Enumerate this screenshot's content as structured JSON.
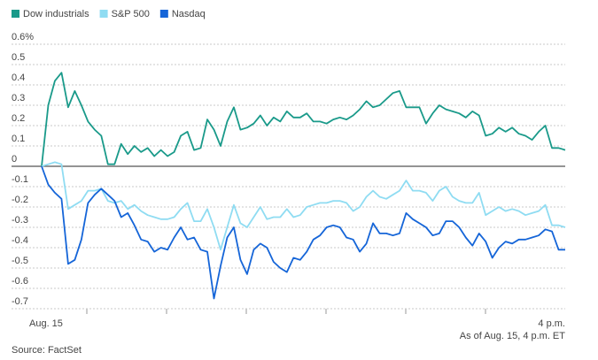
{
  "chart_data": {
    "type": "line",
    "categories": [
      "Aug. 15",
      null,
      null,
      null,
      null,
      null,
      null,
      null,
      null,
      null,
      null,
      null,
      null,
      null,
      null,
      null,
      null,
      null,
      null,
      null,
      null,
      null,
      null,
      null,
      null,
      null,
      null,
      null,
      null,
      null,
      null,
      null,
      null,
      null,
      null,
      null,
      null,
      null,
      null,
      null,
      null,
      null,
      null,
      null,
      null,
      null,
      null,
      null,
      null,
      null,
      null,
      null,
      null,
      null,
      null,
      null,
      null,
      null,
      null,
      null,
      null,
      null,
      null,
      null,
      null,
      null,
      null,
      null,
      null,
      null,
      null,
      null,
      null,
      null,
      null,
      null,
      null,
      null,
      null,
      "4 p.m."
    ],
    "series": [
      {
        "name": "Dow industrials",
        "color": "#1a9a8a",
        "values": [
          0,
          0.3,
          0.42,
          0.46,
          0.29,
          0.37,
          0.3,
          0.22,
          0.18,
          0.15,
          0.01,
          0.01,
          0.11,
          0.06,
          0.1,
          0.07,
          0.09,
          0.05,
          0.08,
          0.05,
          0.07,
          0.15,
          0.17,
          0.08,
          0.09,
          0.23,
          0.18,
          0.1,
          0.22,
          0.29,
          0.18,
          0.19,
          0.21,
          0.25,
          0.2,
          0.24,
          0.22,
          0.27,
          0.24,
          0.24,
          0.26,
          0.22,
          0.22,
          0.21,
          0.23,
          0.24,
          0.23,
          0.25,
          0.28,
          0.32,
          0.29,
          0.3,
          0.33,
          0.36,
          0.37,
          0.29,
          0.29,
          0.29,
          0.21,
          0.26,
          0.3,
          0.28,
          0.27,
          0.26,
          0.24,
          0.27,
          0.25,
          0.15,
          0.16,
          0.19,
          0.17,
          0.19,
          0.16,
          0.15,
          0.13,
          0.17,
          0.2,
          0.09,
          0.09,
          0.08
        ]
      },
      {
        "name": "S&P 500",
        "color": "#8fdcf2",
        "values": [
          0,
          0.01,
          0.02,
          0.01,
          -0.21,
          -0.19,
          -0.17,
          -0.12,
          -0.12,
          -0.11,
          -0.17,
          -0.18,
          -0.17,
          -0.21,
          -0.19,
          -0.22,
          -0.24,
          -0.25,
          -0.26,
          -0.26,
          -0.25,
          -0.21,
          -0.18,
          -0.27,
          -0.27,
          -0.21,
          -0.3,
          -0.41,
          -0.3,
          -0.19,
          -0.28,
          -0.3,
          -0.25,
          -0.2,
          -0.26,
          -0.25,
          -0.25,
          -0.21,
          -0.25,
          -0.24,
          -0.2,
          -0.19,
          -0.18,
          -0.18,
          -0.17,
          -0.17,
          -0.18,
          -0.22,
          -0.2,
          -0.15,
          -0.12,
          -0.15,
          -0.16,
          -0.14,
          -0.12,
          -0.07,
          -0.12,
          -0.12,
          -0.13,
          -0.17,
          -0.12,
          -0.1,
          -0.15,
          -0.17,
          -0.18,
          -0.18,
          -0.13,
          -0.24,
          -0.22,
          -0.2,
          -0.22,
          -0.21,
          -0.22,
          -0.24,
          -0.23,
          -0.22,
          -0.19,
          -0.29,
          -0.29,
          -0.3
        ]
      },
      {
        "name": "Nasdaq",
        "color": "#1565d8",
        "values": [
          0,
          -0.09,
          -0.13,
          -0.16,
          -0.48,
          -0.46,
          -0.36,
          -0.18,
          -0.14,
          -0.11,
          -0.14,
          -0.17,
          -0.25,
          -0.23,
          -0.29,
          -0.36,
          -0.37,
          -0.42,
          -0.4,
          -0.41,
          -0.35,
          -0.3,
          -0.36,
          -0.35,
          -0.41,
          -0.42,
          -0.65,
          -0.49,
          -0.35,
          -0.3,
          -0.46,
          -0.53,
          -0.41,
          -0.38,
          -0.4,
          -0.47,
          -0.5,
          -0.52,
          -0.45,
          -0.46,
          -0.42,
          -0.36,
          -0.34,
          -0.3,
          -0.29,
          -0.3,
          -0.35,
          -0.36,
          -0.42,
          -0.38,
          -0.28,
          -0.33,
          -0.33,
          -0.34,
          -0.33,
          -0.23,
          -0.26,
          -0.28,
          -0.3,
          -0.34,
          -0.33,
          -0.27,
          -0.27,
          -0.3,
          -0.35,
          -0.39,
          -0.33,
          -0.37,
          -0.45,
          -0.4,
          -0.37,
          -0.38,
          -0.36,
          -0.36,
          -0.35,
          -0.34,
          -0.31,
          -0.32,
          -0.41,
          -0.41
        ]
      }
    ],
    "ylim": [
      -0.7,
      0.6
    ],
    "yticks": [
      {
        "value": 0.6,
        "label": "0.6%"
      },
      0.5,
      0.4,
      0.3,
      0.2,
      0.1,
      0,
      -0.1,
      -0.2,
      -0.3,
      -0.4,
      -0.5,
      -0.6,
      -0.7
    ],
    "grid": true,
    "note": "As of Aug. 15, 4 p.m. ET",
    "source": "Source: FactSet"
  }
}
